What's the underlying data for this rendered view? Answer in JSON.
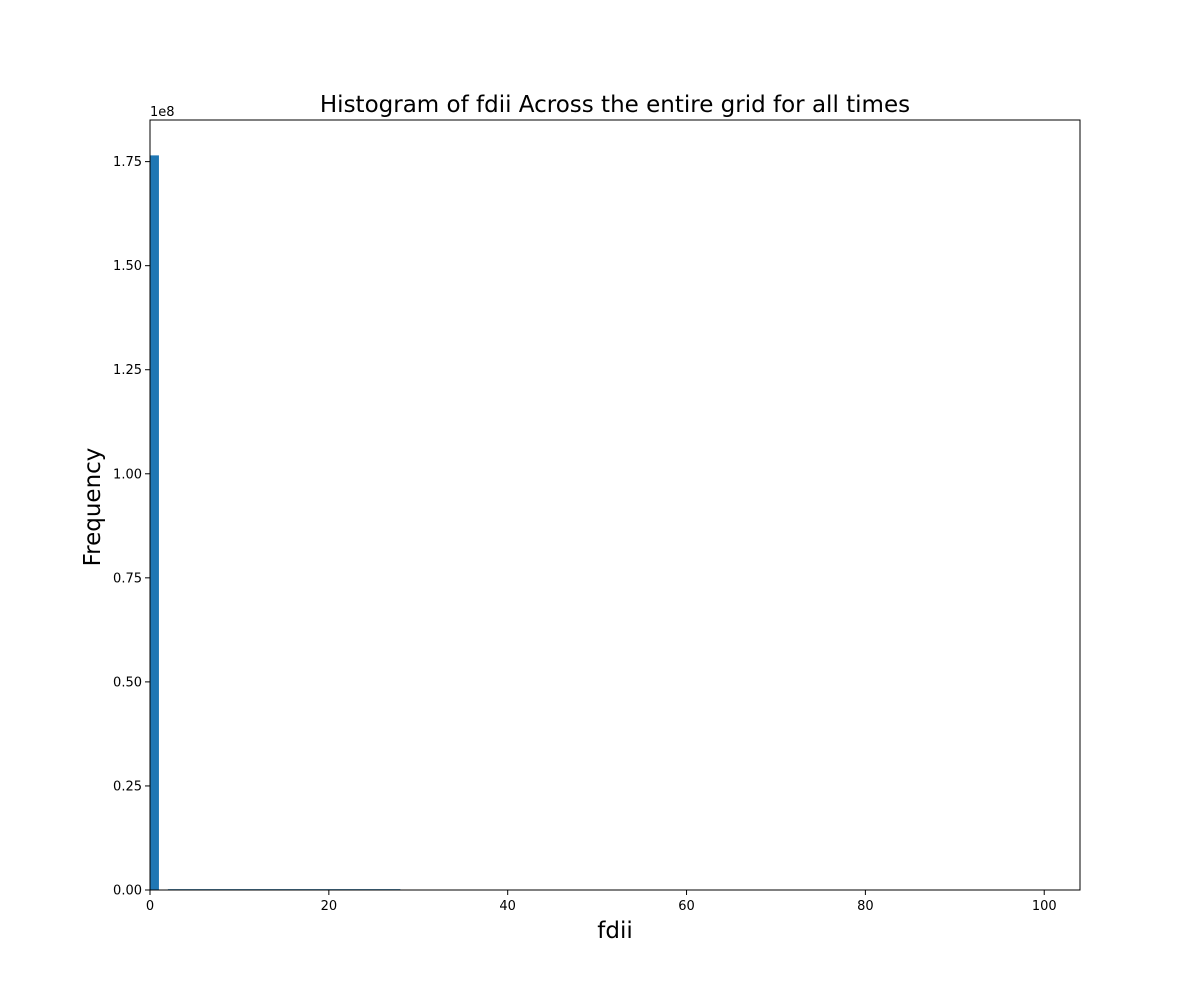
{
  "chart_data": {
    "type": "bar",
    "title": "Histogram of fdii Across the entire grid for all times",
    "xlabel": "fdii",
    "ylabel": "Frequency",
    "y_offset_label": "1e8",
    "xlim": [
      0,
      104
    ],
    "ylim": [
      0,
      1.85
    ],
    "x_ticks": [
      0,
      20,
      40,
      60,
      80,
      100
    ],
    "x_tick_labels": [
      "0",
      "20",
      "40",
      "60",
      "80",
      "100"
    ],
    "y_ticks": [
      0,
      0.25,
      0.5,
      0.75,
      1.0,
      1.25,
      1.5,
      1.75
    ],
    "y_tick_labels": [
      "0.00",
      "0.25",
      "0.50",
      "0.75",
      "1.00",
      "1.25",
      "1.50",
      "1.75"
    ],
    "bar_color": "#1f77b4",
    "grid": false,
    "bins": [
      {
        "x0": 0,
        "x1": 1,
        "value": 1.765
      },
      {
        "x0": 2,
        "x1": 28,
        "value": 0.002
      }
    ]
  }
}
